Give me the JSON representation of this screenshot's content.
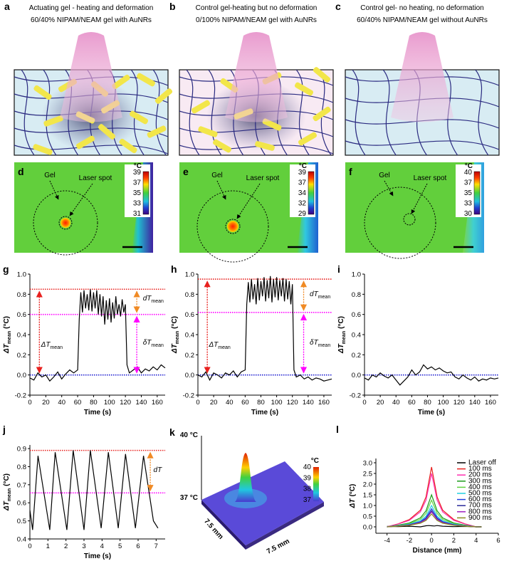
{
  "schematics": [
    {
      "label": "a",
      "lines": [
        "Actuating gel - heating and deformation",
        "60/40% NIPAM/NEAM gel with AuNRs"
      ]
    },
    {
      "label": "b",
      "lines": [
        "Control gel-heating but no deformation",
        "0/100% NIPAM/NEAM gel with AuNRs"
      ]
    },
    {
      "label": "c",
      "lines": [
        "Control gel- no heating, no deformation",
        "60/40% NIPAM/NEAM gel without AuNRs"
      ]
    }
  ],
  "thermal_images": [
    {
      "label": "d",
      "labels": [
        "Gel",
        "Laser spot"
      ],
      "unit": "°C",
      "colorbar_ticks": [
        39,
        37,
        35,
        33,
        31
      ]
    },
    {
      "label": "e",
      "labels": [
        "Gel",
        "Laser spot"
      ],
      "unit": "°C",
      "colorbar_ticks": [
        39,
        37,
        34,
        32,
        29
      ]
    },
    {
      "label": "f",
      "labels": [
        "Gel",
        "Laser spot"
      ],
      "unit": "°C",
      "colorbar_ticks": [
        40,
        37,
        35,
        33,
        30
      ]
    }
  ],
  "surface": {
    "label": "k",
    "z_top": "40 °C",
    "z_bottom": "37 °C",
    "y_size": "7.5 mm",
    "x_size": "7.5 mm",
    "unit": "°C",
    "colorbar_ticks": [
      40,
      39,
      38,
      37
    ]
  },
  "chart_data": [
    {
      "panel": "g",
      "type": "line",
      "color": "#000000",
      "x": [
        0,
        5,
        10,
        15,
        20,
        25,
        30,
        35,
        40,
        45,
        50,
        55,
        60,
        62,
        64,
        66,
        68,
        70,
        72,
        74,
        76,
        78,
        80,
        82,
        84,
        86,
        88,
        90,
        92,
        94,
        96,
        98,
        100,
        102,
        104,
        106,
        108,
        110,
        112,
        114,
        116,
        118,
        120,
        122,
        125,
        130,
        135,
        140,
        145,
        150,
        155,
        160,
        165,
        170
      ],
      "values": [
        -0.03,
        -0.05,
        0.02,
        -0.02,
        0.0,
        -0.06,
        -0.02,
        0.03,
        -0.04,
        0.01,
        0.05,
        0.02,
        0.05,
        0.55,
        0.82,
        0.62,
        0.84,
        0.66,
        0.8,
        0.64,
        0.85,
        0.63,
        0.82,
        0.66,
        0.84,
        0.6,
        0.8,
        0.58,
        0.78,
        0.5,
        0.74,
        0.55,
        0.76,
        0.52,
        0.72,
        0.56,
        0.78,
        0.6,
        0.7,
        0.58,
        0.75,
        0.62,
        0.7,
        0.1,
        0.02,
        0.05,
        0.08,
        0.02,
        0.06,
        0.04,
        0.08,
        0.05,
        0.1,
        0.07
      ],
      "xlim": [
        0,
        170
      ],
      "xticks": [
        0,
        20,
        40,
        60,
        80,
        100,
        120,
        140,
        160
      ],
      "ylim": [
        -0.2,
        1.0
      ],
      "yticks": [
        -0.2,
        {
          "value": 0,
          "label": "0.0"
        },
        0.2,
        0.4,
        0.6,
        0.8,
        {
          "value": 1,
          "label": "1.0"
        }
      ],
      "xlabel": "Time (s)",
      "ylabel": {
        "text": "ΔT",
        "sub": "mean",
        "unit": "(°C)"
      },
      "hlines": [
        {
          "value": 0.85,
          "color": "#e8201e"
        },
        {
          "value": 0.6,
          "color": "#ff00ff"
        },
        {
          "value": 0,
          "color": "#1f1fd0"
        }
      ],
      "annotations": [
        {
          "text": "ΔT",
          "sub": "mean"
        },
        {
          "text": "dT",
          "sub": "mean"
        },
        {
          "text": "δT",
          "sub": "mean"
        }
      ]
    },
    {
      "panel": "h",
      "type": "line",
      "color": "#000000",
      "x": [
        0,
        5,
        10,
        15,
        20,
        25,
        30,
        35,
        40,
        45,
        50,
        55,
        60,
        62,
        64,
        66,
        68,
        70,
        72,
        74,
        76,
        78,
        80,
        82,
        84,
        86,
        88,
        90,
        92,
        94,
        96,
        98,
        100,
        102,
        104,
        106,
        108,
        110,
        112,
        114,
        116,
        118,
        120,
        122,
        125,
        130,
        135,
        140,
        145,
        150,
        155,
        160,
        165,
        170
      ],
      "values": [
        0.0,
        -0.02,
        0.03,
        -0.05,
        0.02,
        0.0,
        -0.03,
        0.02,
        0.0,
        0.04,
        -0.02,
        0.03,
        0.05,
        0.7,
        0.92,
        0.72,
        0.95,
        0.75,
        0.9,
        0.7,
        0.96,
        0.74,
        0.93,
        0.78,
        0.97,
        0.73,
        0.94,
        0.76,
        0.98,
        0.72,
        0.95,
        0.77,
        0.97,
        0.74,
        0.94,
        0.78,
        0.96,
        0.73,
        0.95,
        0.75,
        0.93,
        0.7,
        0.9,
        0.05,
        -0.02,
        0.0,
        -0.04,
        -0.02,
        -0.05,
        -0.03,
        -0.04,
        -0.06,
        -0.05,
        -0.04
      ],
      "xlim": [
        0,
        170
      ],
      "xticks": [
        0,
        20,
        40,
        60,
        80,
        100,
        120,
        140,
        160
      ],
      "ylim": [
        -0.2,
        1.0
      ],
      "yticks": [
        -0.2,
        {
          "value": 0,
          "label": "0.0"
        },
        0.2,
        0.4,
        0.6,
        0.8,
        {
          "value": 1,
          "label": "1.0"
        }
      ],
      "xlabel": "Time (s)",
      "ylabel": {
        "text": "ΔT",
        "sub": "mean",
        "unit": "(°C)"
      },
      "hlines": [
        {
          "value": 0.95,
          "color": "#e8201e"
        },
        {
          "value": 0.62,
          "color": "#ff00ff"
        },
        {
          "value": 0,
          "color": "#1f1fd0"
        }
      ],
      "annotations": [
        {
          "text": "ΔT",
          "sub": "mean"
        },
        {
          "text": "dT",
          "sub": "mean"
        },
        {
          "text": "δT",
          "sub": "mean"
        }
      ]
    },
    {
      "panel": "i",
      "type": "line",
      "color": "#000000",
      "x": [
        0,
        5,
        10,
        15,
        20,
        25,
        30,
        35,
        40,
        45,
        50,
        55,
        60,
        65,
        70,
        75,
        80,
        85,
        90,
        95,
        100,
        105,
        110,
        115,
        120,
        125,
        130,
        135,
        140,
        145,
        150,
        155,
        160,
        165,
        170
      ],
      "values": [
        -0.03,
        -0.05,
        0.0,
        -0.02,
        0.02,
        -0.01,
        -0.03,
        0.0,
        -0.05,
        -0.1,
        -0.06,
        -0.02,
        0.05,
        0.0,
        0.03,
        0.1,
        0.06,
        0.08,
        0.05,
        0.07,
        0.04,
        0.02,
        0.03,
        -0.02,
        -0.04,
        0.0,
        -0.03,
        -0.05,
        -0.02,
        -0.06,
        -0.04,
        -0.05,
        -0.03,
        -0.04,
        -0.03
      ],
      "xlim": [
        0,
        170
      ],
      "xticks": [
        0,
        20,
        40,
        60,
        80,
        100,
        120,
        140,
        160
      ],
      "ylim": [
        -0.2,
        1.0
      ],
      "yticks": [
        -0.2,
        {
          "value": 0,
          "label": "0.0"
        },
        0.2,
        0.4,
        0.6,
        0.8,
        {
          "value": 1,
          "label": "1.0"
        }
      ],
      "xlabel": "Time (s)",
      "ylabel": {
        "text": "ΔT",
        "sub": "mean",
        "unit": "(°C)"
      },
      "hlines": [
        {
          "value": 0,
          "color": "#1f1fd0"
        }
      ]
    },
    {
      "panel": "j",
      "type": "line",
      "color": "#000000",
      "x": [
        0,
        0.15,
        0.45,
        1.1,
        1.4,
        2.05,
        2.4,
        3.0,
        3.35,
        3.95,
        4.35,
        4.9,
        5.3,
        5.85,
        6.3,
        6.85,
        7.1
      ],
      "values": [
        0.56,
        0.45,
        0.86,
        0.45,
        0.88,
        0.45,
        0.89,
        0.45,
        0.89,
        0.46,
        0.88,
        0.46,
        0.87,
        0.46,
        0.86,
        0.5,
        0.46
      ],
      "xlim": [
        0,
        7.5
      ],
      "xticks": [
        0,
        1,
        2,
        3,
        4,
        5,
        6,
        7
      ],
      "ylim": [
        0.4,
        0.92
      ],
      "yticks": [
        0.4,
        0.5,
        0.6,
        0.7,
        0.8,
        0.9
      ],
      "xlabel": "Time (s)",
      "ylabel": {
        "text": "ΔT",
        "sub": "mean",
        "unit": "(°C)"
      },
      "hlines": [
        {
          "value": 0.89,
          "color": "#e8201e"
        },
        {
          "value": 0.655,
          "color": "#ff00ff"
        }
      ],
      "annotations": [
        {
          "text": "dT"
        }
      ]
    },
    {
      "panel": "l",
      "type": "line",
      "x": [
        -4,
        -3,
        -2,
        -1,
        -0.5,
        -0.25,
        0,
        0.25,
        0.5,
        1,
        2,
        3,
        4,
        4.5
      ],
      "series": [
        {
          "name": "Laser off",
          "color": "#000000",
          "values": [
            0.02,
            0.01,
            0.03,
            0.0,
            0.05,
            0.06,
            0.05,
            0.04,
            0.06,
            0.03,
            0.01,
            0.02,
            0.0,
            0.01
          ]
        },
        {
          "name": "100 ms",
          "color": "#e8201e",
          "values": [
            0,
            0.14,
            0.34,
            0.78,
            1.4,
            2.1,
            2.8,
            2.1,
            1.4,
            0.78,
            0.34,
            0.14,
            0,
            0
          ]
        },
        {
          "name": "200 ms",
          "color": "#ff2fb0",
          "values": [
            0,
            0.13,
            0.3,
            0.7,
            1.25,
            1.88,
            2.5,
            1.88,
            1.25,
            0.7,
            0.3,
            0.13,
            0,
            0
          ]
        },
        {
          "name": "300 ms",
          "color": "#1a9a1a",
          "values": [
            0,
            0.08,
            0.18,
            0.42,
            0.75,
            1.13,
            1.5,
            1.13,
            0.75,
            0.42,
            0.18,
            0.08,
            0,
            0
          ]
        },
        {
          "name": "400 ms",
          "color": "#5fd13f",
          "values": [
            0,
            0.06,
            0.15,
            0.35,
            0.63,
            0.94,
            1.25,
            0.94,
            0.63,
            0.35,
            0.15,
            0.06,
            0,
            0
          ]
        },
        {
          "name": "500 ms",
          "color": "#20d0e0",
          "values": [
            0,
            0.05,
            0.12,
            0.28,
            0.5,
            0.75,
            1.0,
            0.75,
            0.5,
            0.28,
            0.12,
            0.05,
            0,
            0
          ]
        },
        {
          "name": "600 ms",
          "color": "#1f3fe0",
          "values": [
            0,
            0.04,
            0.1,
            0.24,
            0.43,
            0.64,
            0.85,
            0.64,
            0.43,
            0.24,
            0.1,
            0.04,
            0,
            0
          ]
        },
        {
          "name": "700 ms",
          "color": "#2a2a9a",
          "values": [
            0,
            0.04,
            0.09,
            0.21,
            0.38,
            0.56,
            0.75,
            0.56,
            0.38,
            0.21,
            0.09,
            0.04,
            0,
            0
          ]
        },
        {
          "name": "800 ms",
          "color": "#a020c0",
          "values": [
            0,
            0.04,
            0.08,
            0.2,
            0.35,
            0.53,
            0.7,
            0.53,
            0.35,
            0.2,
            0.08,
            0.04,
            0,
            0
          ]
        },
        {
          "name": "900 ms",
          "color": "#8a8a20",
          "values": [
            0,
            0.03,
            0.07,
            0.17,
            0.3,
            0.45,
            0.6,
            0.45,
            0.3,
            0.17,
            0.07,
            0.03,
            0,
            0
          ]
        }
      ],
      "xlim": [
        -5,
        6
      ],
      "xticks": [
        -4,
        -2,
        0,
        2,
        4,
        6
      ],
      "ylim": [
        -0.3,
        3.2
      ],
      "yticks": [
        {
          "value": 0,
          "label": "0.0"
        },
        0.5,
        {
          "value": 1,
          "label": "1.0"
        },
        1.5,
        {
          "value": 2,
          "label": "2.0"
        },
        2.5,
        {
          "value": 3,
          "label": "3.0"
        }
      ],
      "xlabel": "Distance (mm)",
      "ylabel": {
        "text": "ΔT",
        "unit": "(°C)"
      },
      "legend": "upper right"
    }
  ]
}
